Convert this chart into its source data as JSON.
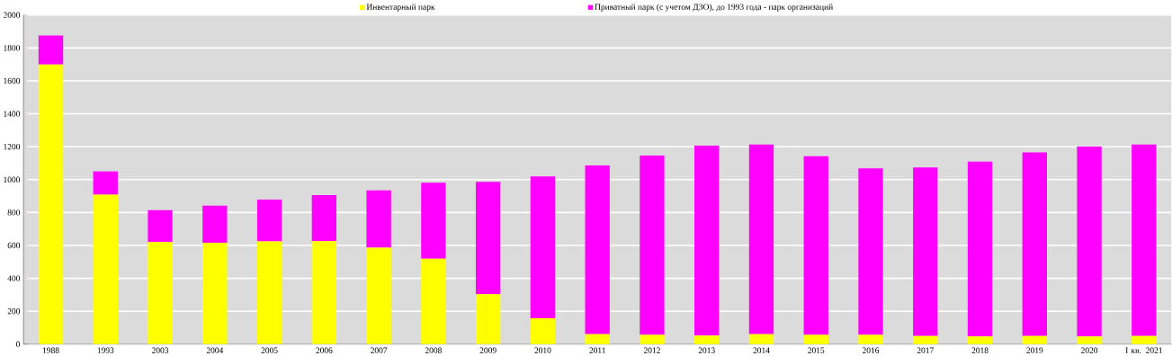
{
  "chart_data": {
    "type": "bar",
    "stacked": true,
    "categories": [
      "1988",
      "1993",
      "2003",
      "2004",
      "2005",
      "2006",
      "2007",
      "2008",
      "2009",
      "2010",
      "2011",
      "2012",
      "2013",
      "2014",
      "2015",
      "2016",
      "2017",
      "2018",
      "2019",
      "2020",
      "I кв. 2021"
    ],
    "series": [
      {
        "name": "Инвентарный парк",
        "color": "#ffff00",
        "values": [
          1700,
          908,
          621,
          616,
          624,
          626,
          586,
          520,
          304,
          158,
          61,
          57,
          52,
          61,
          57,
          57,
          50,
          47,
          50,
          47,
          50
        ]
      },
      {
        "name": "Приватный парк (с учетом ДЗО), до 1993 года - парк организаций",
        "color": "#ff00ff",
        "values": [
          175,
          142,
          193,
          226,
          254,
          280,
          348,
          461,
          682,
          861,
          1025,
          1090,
          1154,
          1152,
          1085,
          1012,
          1024,
          1062,
          1116,
          1154,
          1163
        ]
      }
    ],
    "ylim": [
      0,
      2000
    ],
    "yticks": [
      0,
      200,
      400,
      600,
      800,
      1000,
      1200,
      1400,
      1600,
      1800,
      2000
    ],
    "grid": "y",
    "legend": "top"
  }
}
